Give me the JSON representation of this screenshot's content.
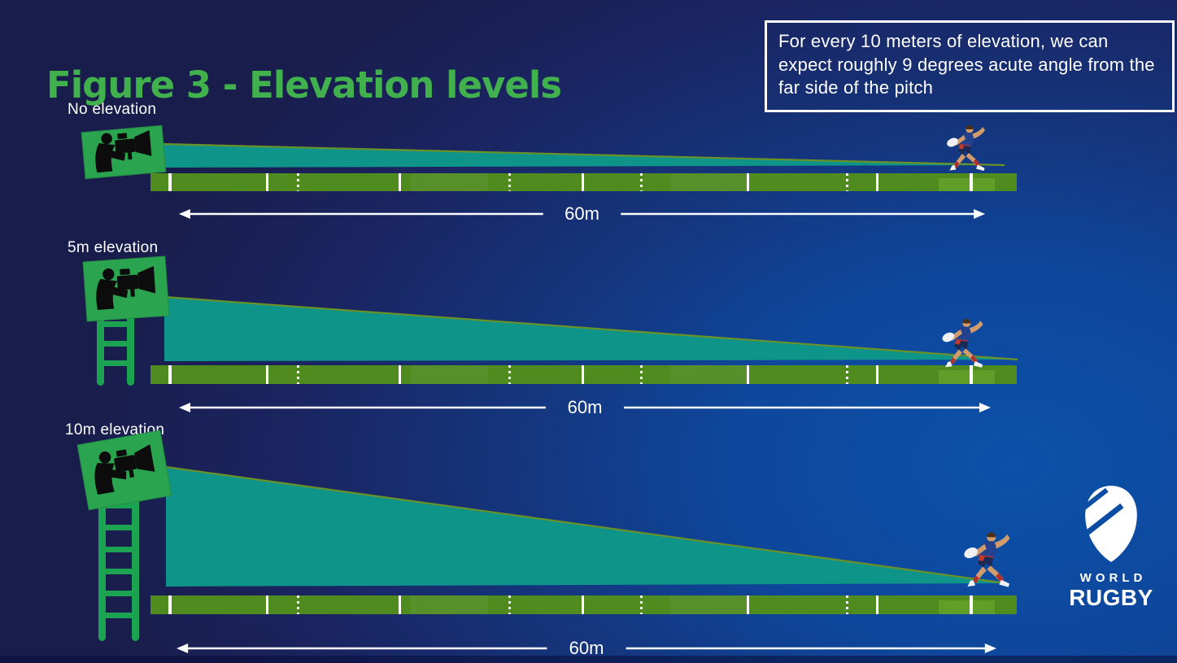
{
  "title": "Figure 3 - Elevation levels",
  "info_box": "For every 10 meters of elevation, we can expect roughly 9 degrees acute angle from the far side of the pitch",
  "diagrams": [
    {
      "label": "No elevation",
      "elevation": "0m",
      "distance": "60m"
    },
    {
      "label": "5m elevation",
      "elevation": "5m",
      "distance": "60m"
    },
    {
      "label": "10m elevation",
      "elevation": "10m",
      "distance": "60m"
    }
  ],
  "logo": {
    "word1": "WORLD",
    "word2": "RUGBY"
  },
  "colors": {
    "title_green": "#41b14e",
    "wedge_teal": "#0e9489",
    "wedge_edge_olive": "#6b9227",
    "pitch_green": "#4f8b1f",
    "pitch_light_green": "#63a02c",
    "board_green": "#2ba44f",
    "ladder_green": "#1ca351",
    "background_navy": "#191d4b",
    "background_blue": "#0b51a9",
    "text_white": "#ffffff"
  },
  "pitch": {
    "lines": [
      {
        "pos": 2.1,
        "style": "solid",
        "w": 4
      },
      {
        "pos": 13.3,
        "style": "solid",
        "w": 3
      },
      {
        "pos": 16.9,
        "style": "dashed",
        "w": 3
      },
      {
        "pos": 28.6,
        "style": "solid",
        "w": 3
      },
      {
        "pos": 41.3,
        "style": "dashed",
        "w": 3
      },
      {
        "pos": 49.8,
        "style": "solid",
        "w": 3
      },
      {
        "pos": 56.5,
        "style": "dashed",
        "w": 3
      },
      {
        "pos": 68.8,
        "style": "solid",
        "w": 3
      },
      {
        "pos": 80.3,
        "style": "dashed",
        "w": 3
      },
      {
        "pos": 83.8,
        "style": "solid",
        "w": 3
      },
      {
        "pos": 94.6,
        "style": "solid",
        "w": 4
      }
    ]
  }
}
